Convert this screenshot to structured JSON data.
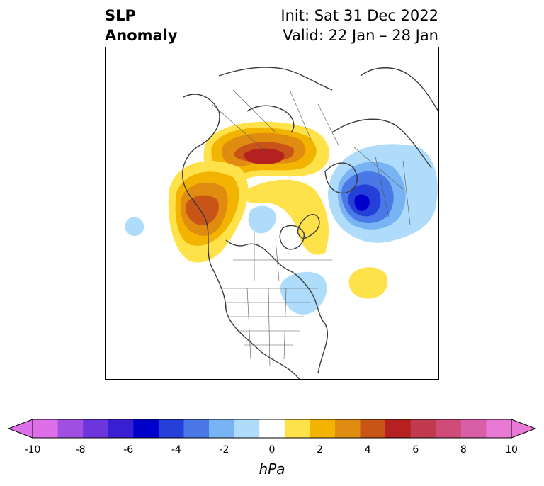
{
  "title": {
    "left_line1": "SLP",
    "left_line2": "Anomaly",
    "right_line1": "Init: Sat 31 Dec 2022",
    "right_line2": "Valid: 22 Jan – 28 Jan"
  },
  "map": {
    "projection": "north-polar-stereographic",
    "region": "North America / Arctic",
    "anomalies": [
      {
        "sign": "positive",
        "location": "Siberia / Arctic Ocean",
        "peak_hpa": 6
      },
      {
        "sign": "positive",
        "location": "Alaska / Bering Sea",
        "peak_hpa": 4
      },
      {
        "sign": "negative",
        "location": "Scandinavia / NW Europe",
        "peak_hpa": -5
      },
      {
        "sign": "positive",
        "location": "North Atlantic",
        "peak_hpa": 1
      },
      {
        "sign": "negative",
        "location": "Eastern Canada / Labrador",
        "peak_hpa": -1
      },
      {
        "sign": "negative",
        "location": "North Pole",
        "peak_hpa": -1
      },
      {
        "sign": "negative",
        "location": "North Pacific",
        "peak_hpa": -1
      }
    ]
  },
  "colorbar": {
    "unit": "hPa",
    "ticks": [
      "-10",
      "-8",
      "-6",
      "-4",
      "-2",
      "0",
      "2",
      "4",
      "6",
      "8",
      "10"
    ],
    "colors": [
      "#dd6fe8",
      "#a050e0",
      "#6c36dc",
      "#3a1fd2",
      "#0000cc",
      "#2540d8",
      "#4a78e6",
      "#78b4f4",
      "#aedcfa",
      "#ffffff",
      "#ffe24a",
      "#f2b400",
      "#e08c10",
      "#c85418",
      "#b52020",
      "#c23a50",
      "#d04b78",
      "#d85ea8",
      "#e87ad6"
    ],
    "under_color": "#dd6fe8",
    "over_color": "#e87ad6"
  }
}
